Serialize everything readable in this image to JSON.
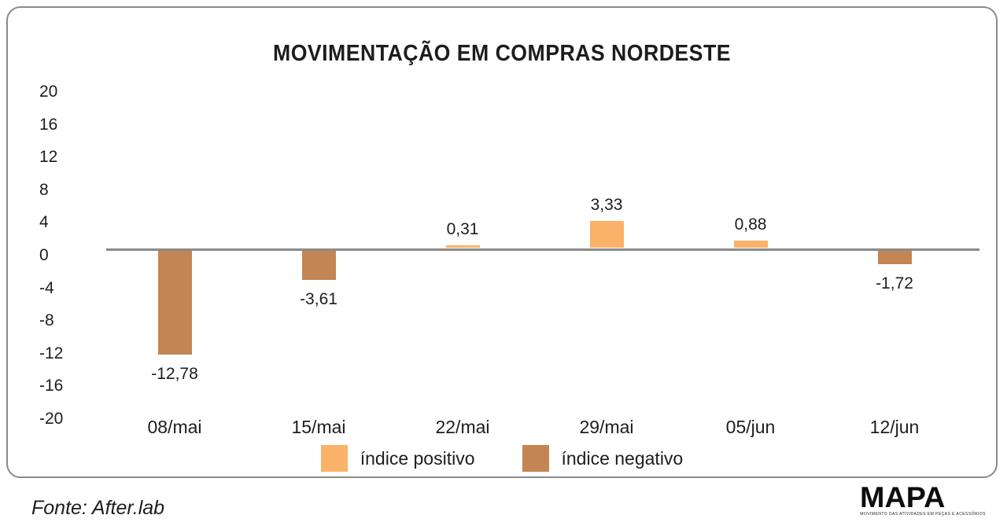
{
  "title": "MOVIMENTAÇÃO EM COMPRAS NORDESTE",
  "chart_data": {
    "type": "bar",
    "title": "MOVIMENTAÇÃO EM COMPRAS NORDESTE",
    "categories": [
      "08/mai",
      "15/mai",
      "22/mai",
      "29/mai",
      "05/jun",
      "12/jun"
    ],
    "values": [
      -12.78,
      -3.61,
      0.31,
      3.33,
      0.88,
      -1.72
    ],
    "value_labels": [
      "-12,78",
      "-3,61",
      "0,31",
      "3,33",
      "0,88",
      "-1,72"
    ],
    "xlabel": "",
    "ylabel": "",
    "ylim": [
      -20,
      20
    ],
    "yticks": [
      20,
      16,
      12,
      8,
      4,
      0,
      -4,
      -8,
      -12,
      -16,
      -20
    ],
    "ytick_labels": [
      "20",
      "16",
      "12",
      "8",
      "4",
      "0",
      "-4",
      "-8",
      "-12",
      "-16",
      "-20"
    ],
    "grid": false,
    "baseline": 0,
    "legend_position": "bottom-center",
    "positive_color": "#FAB269",
    "negative_color": "#C28553",
    "axis_line_color": "#8a8a8a"
  },
  "legend": {
    "items": [
      {
        "label": "índice positivo",
        "color": "#FAB269"
      },
      {
        "label": "índice negativo",
        "color": "#C28553"
      }
    ]
  },
  "footer": {
    "source": "Fonte: After.lab"
  },
  "logo": {
    "name": "MAPA",
    "tagline": "MOVIMENTO DAS ATIVIDADES EM PEÇAS E ACESSÓRIOS"
  },
  "colors": {
    "border": "#8a8a8a",
    "text": "#1d1d1d",
    "background": "#ffffff"
  }
}
